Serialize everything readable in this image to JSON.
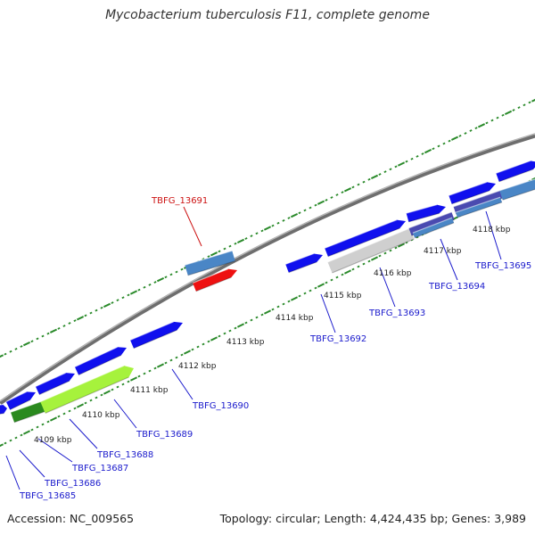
{
  "title": "Mycobacterium tuberculosis F11, complete genome",
  "footer": {
    "accession": "Accession: NC_009565",
    "summary": "Topology: circular; Length: 4,424,435 bp; Genes: 3,989"
  },
  "colors": {
    "backbone": "#8a8a8a",
    "gene_forward": "#1010ee",
    "gene_steelblue": "#4a86c6",
    "gene_red": "#ee1111",
    "gene_lightgreen": "#a6f23c",
    "gene_darkgreen": "#2a8a1e",
    "gene_purple": "#4a4ab0",
    "gene_grey": "#cfcfcf",
    "tick": "#2a8a2a",
    "label_blue": "#1a1acc",
    "label_red": "#cc1111"
  },
  "positions": [
    "4109 kbp",
    "4110 kbp",
    "4111 kbp",
    "4112 kbp",
    "4113 kbp",
    "4114 kbp",
    "4115 kbp",
    "4116 kbp",
    "4117 kbp",
    "4118 kbp"
  ],
  "genes": [
    {
      "id": "TBFG_13685",
      "color": "blue"
    },
    {
      "id": "TBFG_13686",
      "color": "blue"
    },
    {
      "id": "TBFG_13687",
      "color": "blue"
    },
    {
      "id": "TBFG_13688",
      "color": "blue"
    },
    {
      "id": "TBFG_13689",
      "color": "blue"
    },
    {
      "id": "TBFG_13690",
      "color": "blue"
    },
    {
      "id": "TBFG_13691",
      "color": "red"
    },
    {
      "id": "TBFG_13692",
      "color": "blue"
    },
    {
      "id": "TBFG_13693",
      "color": "blue"
    },
    {
      "id": "TBFG_13694",
      "color": "blue"
    },
    {
      "id": "TBFG_13695",
      "color": "blue"
    }
  ]
}
